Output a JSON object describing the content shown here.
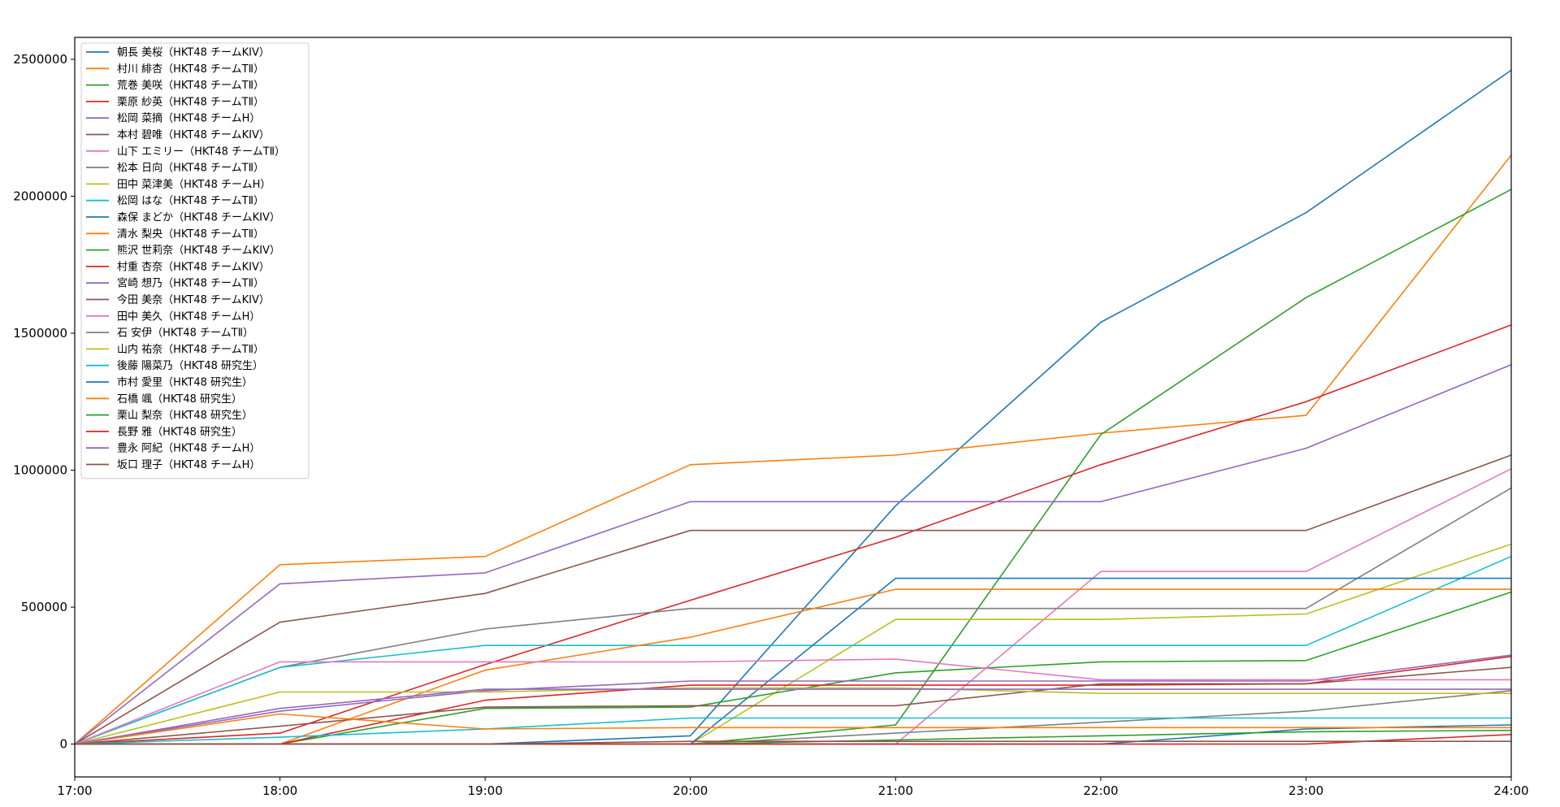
{
  "chart_data": {
    "type": "line",
    "title": "",
    "xlabel": "",
    "ylabel": "",
    "categories": [
      "17:00",
      "18:00",
      "19:00",
      "20:00",
      "21:00",
      "22:00",
      "23:00",
      "24:00"
    ],
    "yticks": [
      "0",
      "500000",
      "1000000",
      "1500000",
      "2000000",
      "2500000"
    ],
    "ylim": [
      -120000,
      2580000
    ],
    "grid": false,
    "legend_position": "top-left",
    "colors": [
      "#1f77b4",
      "#ff7f0e",
      "#2ca02c",
      "#d62728",
      "#9467bd",
      "#8c564b",
      "#e377c2",
      "#7f7f7f",
      "#bcbd22",
      "#17becf"
    ],
    "series": [
      {
        "name": "朝長 美桜（HKT48 チームKIV）",
        "values": [
          0,
          0,
          0,
          30000,
          870000,
          1540000,
          1940000,
          2460000
        ]
      },
      {
        "name": "村川 緋杏（HKT48 チームTⅡ）",
        "values": [
          0,
          655000,
          685000,
          1020000,
          1055000,
          1135000,
          1200000,
          2150000
        ]
      },
      {
        "name": "荒巻 美咲（HKT48 チームTⅡ）",
        "values": [
          0,
          0,
          0,
          0,
          70000,
          1130000,
          1630000,
          2025000
        ]
      },
      {
        "name": "栗原 紗英（HKT48 チームTⅡ）",
        "values": [
          0,
          40000,
          290000,
          525000,
          755000,
          1020000,
          1250000,
          1530000
        ]
      },
      {
        "name": "松岡 菜摘（HKT48 チームH）",
        "values": [
          0,
          585000,
          625000,
          885000,
          885000,
          885000,
          1080000,
          1385000
        ]
      },
      {
        "name": "本村 碧唯（HKT48 チームKIV）",
        "values": [
          0,
          445000,
          550000,
          780000,
          780000,
          780000,
          780000,
          1055000
        ]
      },
      {
        "name": "山下 エミリー（HKT48 チームTⅡ）",
        "values": [
          0,
          0,
          0,
          0,
          0,
          630000,
          630000,
          1005000
        ]
      },
      {
        "name": "松本 日向（HKT48 チームTⅡ）",
        "values": [
          0,
          280000,
          420000,
          495000,
          495000,
          495000,
          495000,
          935000
        ]
      },
      {
        "name": "田中 菜津美（HKT48 チームH）",
        "values": [
          0,
          0,
          0,
          0,
          455000,
          455000,
          475000,
          730000
        ]
      },
      {
        "name": "松岡 はな（HKT48 チームTⅡ）",
        "values": [
          0,
          280000,
          360000,
          360000,
          360000,
          360000,
          360000,
          685000
        ]
      },
      {
        "name": "森保 まどか（HKT48 チームKIV）",
        "values": [
          0,
          0,
          0,
          0,
          605000,
          605000,
          605000,
          605000
        ]
      },
      {
        "name": "清水 梨央（HKT48 チームTⅡ）",
        "values": [
          0,
          0,
          270000,
          390000,
          565000,
          565000,
          565000,
          565000
        ]
      },
      {
        "name": "熊沢 世莉奈（HKT48 チームKIV）",
        "values": [
          0,
          0,
          130000,
          135000,
          260000,
          300000,
          305000,
          555000
        ]
      },
      {
        "name": "村重 杏奈（HKT48 チームKIV）",
        "values": [
          0,
          0,
          160000,
          215000,
          215000,
          215000,
          220000,
          320000
        ]
      },
      {
        "name": "宮崎 想乃（HKT48 チームTⅡ）",
        "values": [
          0,
          120000,
          195000,
          230000,
          230000,
          230000,
          230000,
          325000
        ]
      },
      {
        "name": "今田 美奈（HKT48 チームKIV）",
        "values": [
          0,
          65000,
          135000,
          140000,
          140000,
          220000,
          220000,
          280000
        ]
      },
      {
        "name": "田中 美久（HKT48 チームH）",
        "values": [
          0,
          300000,
          300000,
          300000,
          310000,
          235000,
          235000,
          235000
        ]
      },
      {
        "name": "石 安伊（HKT48 チームTⅡ）",
        "values": [
          0,
          0,
          0,
          0,
          40000,
          80000,
          120000,
          195000
        ]
      },
      {
        "name": "山内 祐奈（HKT48 チームTⅡ）",
        "values": [
          0,
          190000,
          190000,
          205000,
          205000,
          185000,
          185000,
          185000
        ]
      },
      {
        "name": "後藤 陽菜乃（HKT48 研究生）",
        "values": [
          0,
          25000,
          55000,
          95000,
          95000,
          95000,
          95000,
          95000
        ]
      },
      {
        "name": "市村 愛里（HKT48 研究生）",
        "values": [
          0,
          0,
          0,
          0,
          0,
          0,
          55000,
          70000
        ]
      },
      {
        "name": "石橋 颯（HKT48 研究生）",
        "values": [
          0,
          110000,
          55000,
          60000,
          60000,
          60000,
          60000,
          60000
        ]
      },
      {
        "name": "栗山 梨奈（HKT48 研究生）",
        "values": [
          0,
          0,
          0,
          0,
          15000,
          30000,
          45000,
          50000
        ]
      },
      {
        "name": "長野 雅（HKT48 研究生）",
        "values": [
          0,
          0,
          0,
          0,
          0,
          0,
          0,
          35000
        ]
      },
      {
        "name": "豊永 阿紀（HKT48 チームH）",
        "values": [
          0,
          130000,
          200000,
          200000,
          200000,
          200000,
          200000,
          200000
        ]
      },
      {
        "name": "坂口 理子（HKT48 チームH）",
        "values": [
          0,
          0,
          0,
          10000,
          10000,
          10000,
          10000,
          10000
        ]
      }
    ]
  }
}
